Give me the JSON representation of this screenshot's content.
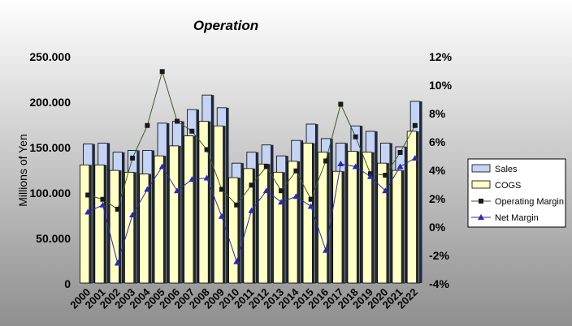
{
  "chart_data": {
    "type": "bar",
    "title": "Operation",
    "ylabel": "Millions of Yen",
    "xlabel": "",
    "categories": [
      "2000",
      "2001",
      "2002",
      "2003",
      "2004",
      "2005",
      "2006",
      "2007",
      "2008",
      "2009",
      "2010",
      "2011",
      "2012",
      "2013",
      "2014",
      "2015",
      "2016",
      "2017",
      "2018",
      "2019",
      "2020",
      "2021",
      "2022"
    ],
    "ylim": [
      0,
      250000
    ],
    "y_ticks": [
      "0",
      "50.000",
      "100.000",
      "150.000",
      "200.000",
      "250.000"
    ],
    "y2lim": [
      -4,
      12
    ],
    "y2_ticks": [
      "-4%",
      "-2%",
      "0%",
      "2%",
      "4%",
      "6%",
      "8%",
      "10%",
      "12%"
    ],
    "grid": false,
    "legend_position": "right",
    "series": [
      {
        "name": "Sales",
        "kind": "bar",
        "color": "#c6d3f2",
        "values": [
          153000,
          154000,
          144000,
          146000,
          146000,
          176000,
          178000,
          191000,
          207000,
          193000,
          132000,
          144000,
          152000,
          140000,
          157000,
          175000,
          159000,
          154000,
          173000,
          167000,
          154000,
          150000,
          200000
        ]
      },
      {
        "name": "COGS",
        "kind": "bar",
        "color": "#ffffc8",
        "values": [
          130000,
          130000,
          124000,
          122000,
          120000,
          140000,
          151000,
          162000,
          178000,
          173000,
          116000,
          126000,
          131000,
          122000,
          134000,
          154000,
          144000,
          123000,
          145000,
          144000,
          132000,
          124000,
          167000
        ]
      },
      {
        "name": "Operating Margin",
        "kind": "line",
        "axis": "right",
        "color": "#1a1a1a",
        "marker": "square",
        "line_color": "#3e5a2a",
        "values": [
          2.2,
          1.9,
          1.2,
          4.8,
          7.1,
          10.9,
          7.4,
          6.7,
          5.4,
          2.6,
          1.5,
          2.9,
          4.2,
          2.5,
          3.9,
          1.9,
          4.6,
          8.6,
          6.3,
          3.7,
          3.6,
          5.2,
          7.1
        ]
      },
      {
        "name": "Net Margin",
        "kind": "line",
        "axis": "right",
        "color": "#2b2bb0",
        "marker": "triangle",
        "line_color": "#2b2bb0",
        "values": [
          1.0,
          1.5,
          -2.6,
          0.8,
          2.6,
          4.2,
          2.5,
          3.3,
          3.4,
          0.7,
          -2.5,
          1.1,
          2.5,
          1.7,
          2.1,
          1.4,
          -1.7,
          4.4,
          4.2,
          3.5,
          2.5,
          4.2,
          4.8
        ]
      }
    ]
  }
}
